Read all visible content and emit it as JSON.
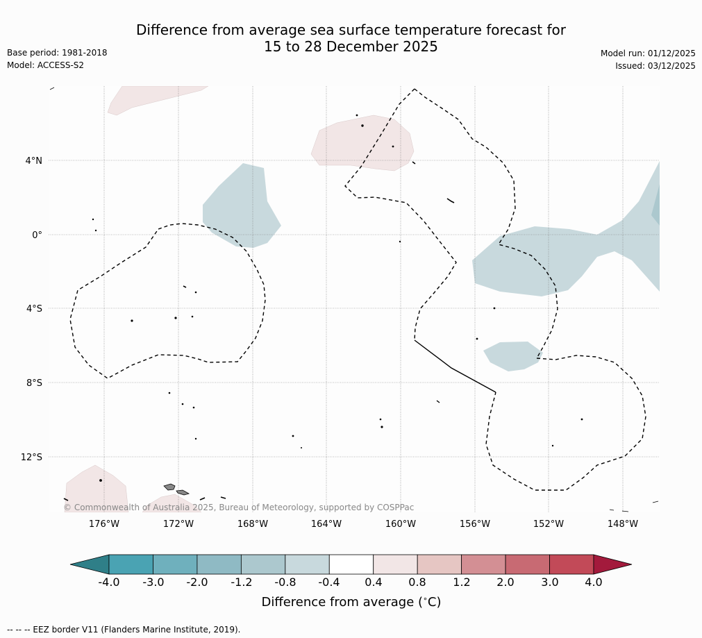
{
  "header": {
    "title_line1": "Difference from average sea surface temperature forecast for",
    "title_line2": "15 to 28 December 2025",
    "base_period": "Base period: 1981-2018",
    "model": "Model: ACCESS-S2",
    "model_run": "Model run: 01/12/2025",
    "issued": "Issued: 03/12/2025"
  },
  "map": {
    "lat_labels": [
      "4°N",
      "0°",
      "4°S",
      "8°S",
      "12°S"
    ],
    "lon_labels": [
      "176°W",
      "172°W",
      "168°W",
      "164°W",
      "160°W",
      "156°W",
      "152°W",
      "148°W"
    ],
    "copyright": "© Commonwealth of Australia 2025, Bureau of Meteorology, supported by COSPPac"
  },
  "colorbar": {
    "label": "Difference from average (°C)",
    "label_prefix": "Difference from average (",
    "label_deg": "∘",
    "label_suffix": "C)",
    "ticks": [
      "-4.0",
      "-3.0",
      "-2.0",
      "-1.2",
      "-0.8",
      "-0.4",
      "0.4",
      "0.8",
      "1.2",
      "2.0",
      "3.0",
      "4.0"
    ],
    "colors": [
      "#2f7f88",
      "#4aa3b3",
      "#6fb0bd",
      "#8fbac4",
      "#acc8ce",
      "#c8d9dd",
      "#ffffff",
      "#f2e6e6",
      "#e6c6c3",
      "#d38f94",
      "#c86a73",
      "#c24a58",
      "#a31a3c"
    ]
  },
  "footer": {
    "eez_note": "--  --  -- EEZ border V11 (Flanders Marine Institute, 2019)."
  }
}
